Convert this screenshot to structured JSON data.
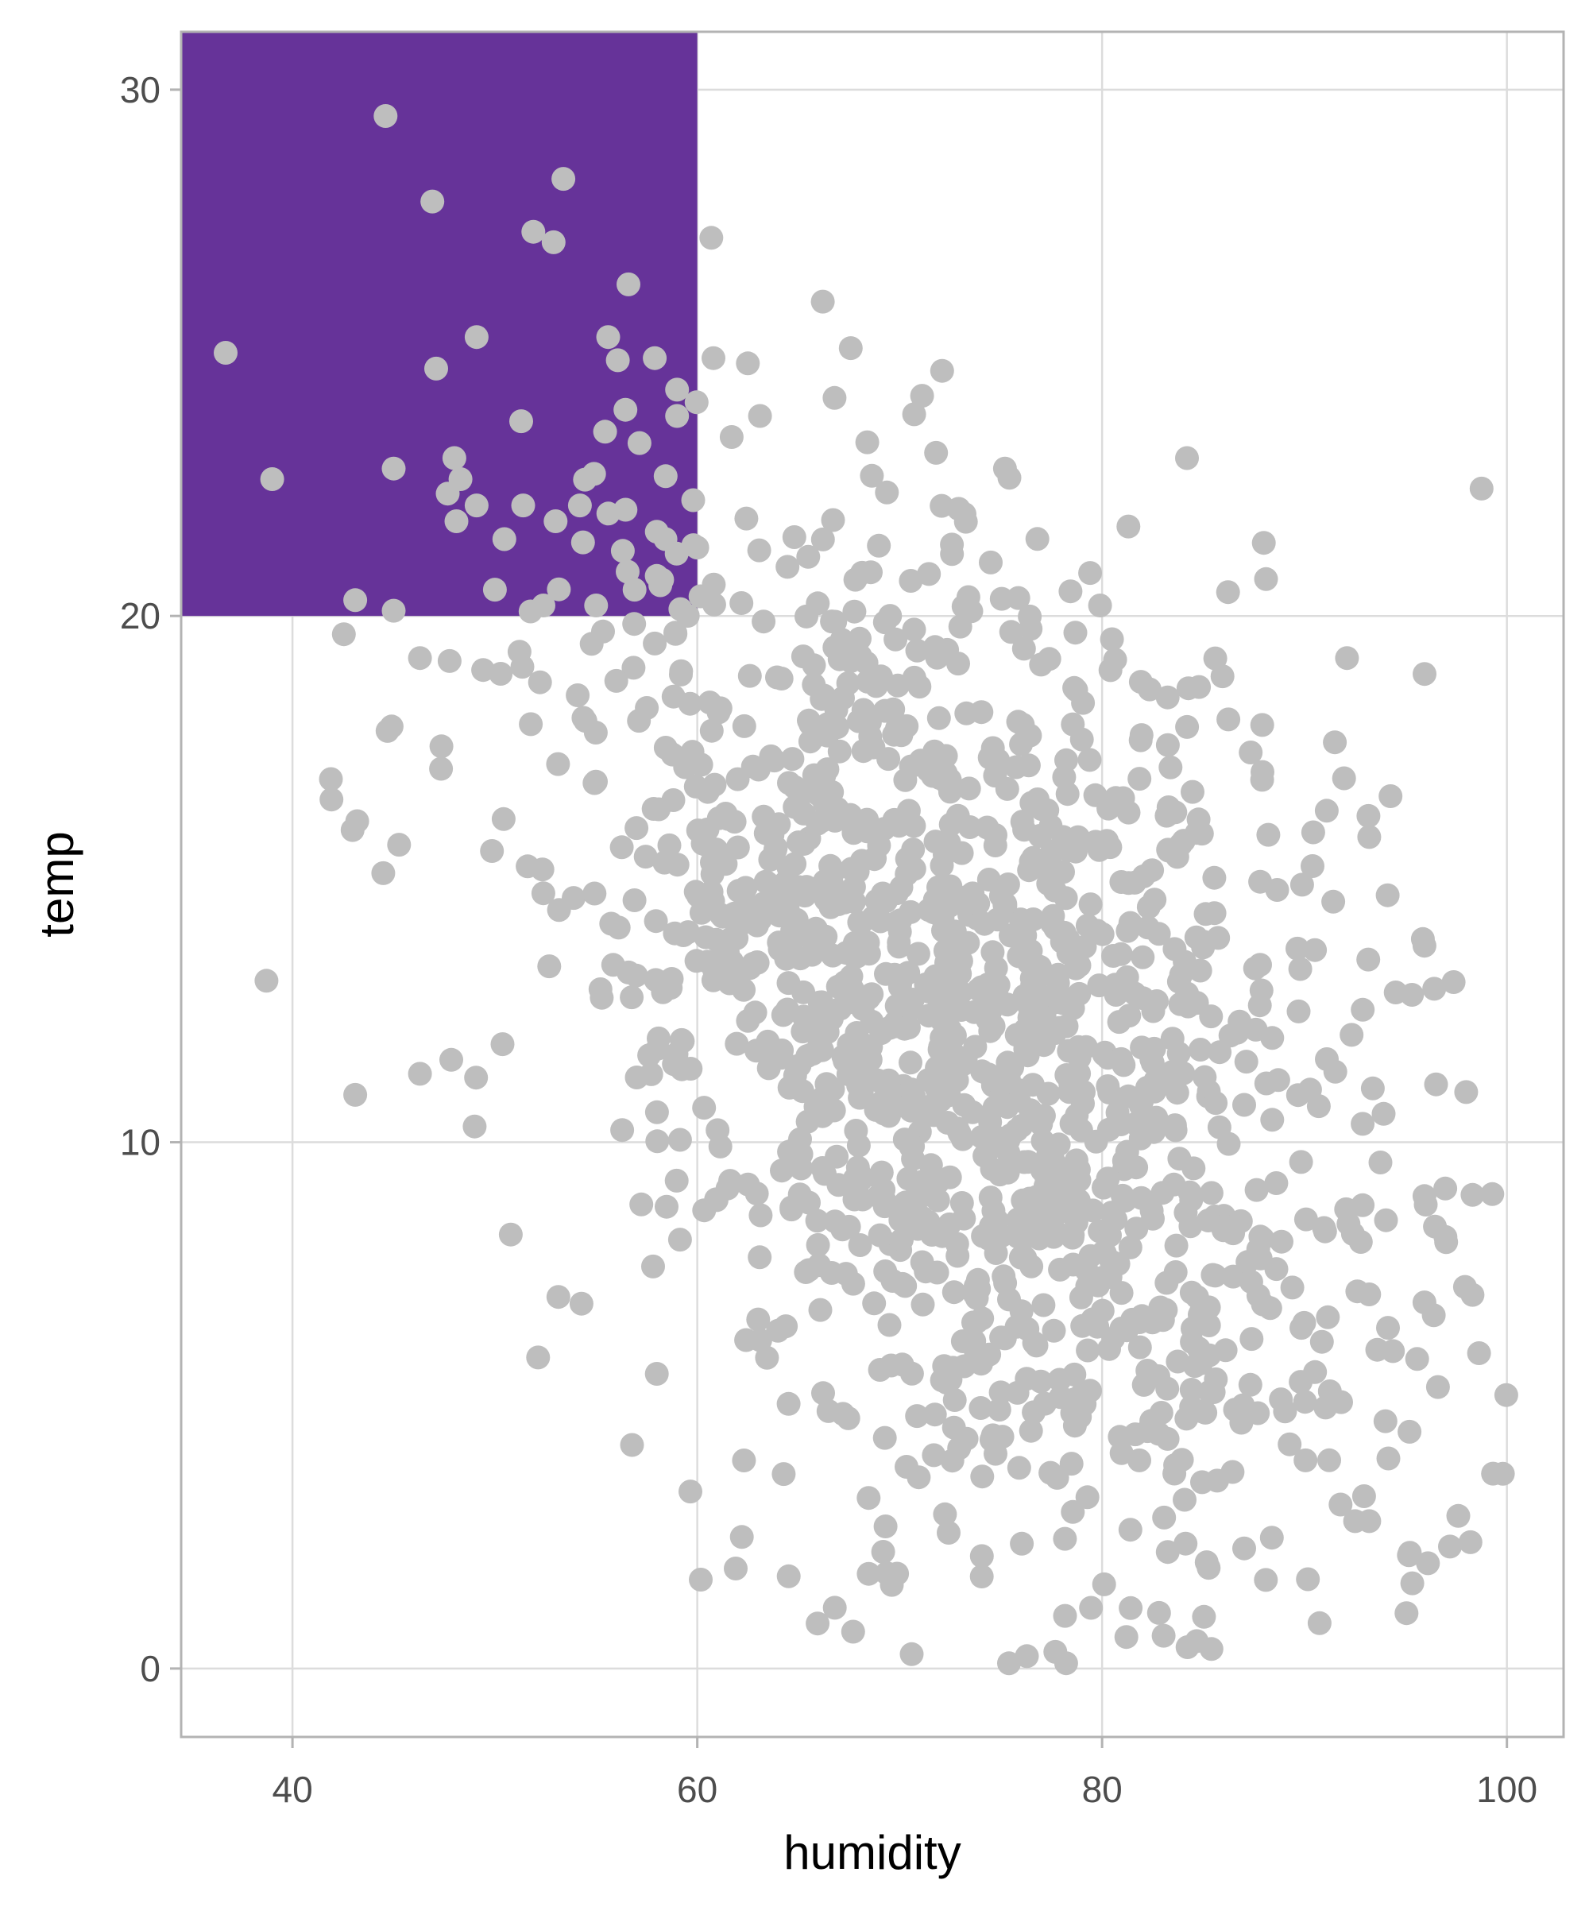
{
  "chart_data": {
    "type": "scatter",
    "title": "",
    "xlabel": "humidity",
    "ylabel": "temp",
    "xlim": [
      34.5,
      102.8
    ],
    "ylim": [
      -1.3,
      31.1
    ],
    "x_ticks": [
      40,
      60,
      80,
      100
    ],
    "y_ticks": [
      0,
      10,
      20,
      30
    ],
    "grid": true,
    "legend": "none",
    "colors": {
      "points": "#bebebe",
      "highlight_fill": "#663399",
      "grid": "#dcdcdc",
      "border": "#b3b3b3",
      "tick_text": "#4d4d4d"
    },
    "highlight_region": {
      "x": [
        34.5,
        60
      ],
      "y": [
        20,
        31.1
      ]
    },
    "point_count": 1500,
    "points_sample": [
      [
        44.6,
        29.5
      ],
      [
        51.9,
        27.3
      ],
      [
        52.9,
        27.1
      ],
      [
        56.6,
        26.3
      ],
      [
        36.7,
        25.0
      ],
      [
        49.1,
        25.3
      ],
      [
        47.1,
        24.7
      ],
      [
        55.6,
        25.3
      ],
      [
        57.9,
        24.9
      ],
      [
        59.0,
        24.3
      ],
      [
        51.3,
        23.7
      ],
      [
        59.0,
        23.8
      ],
      [
        39.0,
        22.6
      ],
      [
        45.0,
        22.8
      ],
      [
        48.0,
        23.0
      ],
      [
        48.3,
        22.6
      ],
      [
        54.9,
        22.7
      ],
      [
        48.1,
        21.8
      ],
      [
        49.1,
        22.1
      ],
      [
        51.4,
        22.1
      ],
      [
        53.0,
        21.8
      ],
      [
        54.2,
        22.1
      ],
      [
        58.0,
        21.6
      ],
      [
        59.8,
        22.2
      ],
      [
        60.0,
        21.3
      ],
      [
        43.1,
        20.3
      ],
      [
        45.0,
        20.1
      ],
      [
        50.0,
        20.5
      ],
      [
        52.4,
        20.2
      ],
      [
        55.0,
        20.2
      ],
      [
        56.9,
        20.5
      ],
      [
        60.8,
        24.9
      ],
      [
        62.5,
        24.8
      ],
      [
        63.1,
        23.8
      ],
      [
        61.7,
        23.4
      ],
      [
        68.4,
        23.3
      ],
      [
        71.8,
        23.1
      ],
      [
        75.2,
        22.8
      ],
      [
        81.3,
        21.7
      ],
      [
        88.1,
        20.7
      ],
      [
        79.9,
        20.2
      ],
      [
        92.1,
        19.2
      ],
      [
        41.9,
        16.9
      ],
      [
        43.2,
        16.1
      ],
      [
        46.3,
        19.2
      ],
      [
        44.9,
        17.9
      ],
      [
        43.1,
        10.9
      ],
      [
        46.3,
        11.3
      ],
      [
        49.0,
        10.3
      ],
      [
        58.0,
        5.6
      ],
      [
        62.2,
        2.5
      ],
      [
        61.9,
        1.9
      ],
      [
        67.7,
        0.7
      ],
      [
        75.4,
        0.1
      ],
      [
        81.2,
        0.6
      ],
      [
        80.1,
        1.6
      ],
      [
        99.8,
        3.7
      ],
      [
        98.3,
        7.1
      ],
      [
        98.3,
        9.0
      ],
      [
        96.5,
        11.1
      ],
      [
        97.6,
        2.9
      ],
      [
        98.2,
        2.4
      ],
      [
        95.2,
        2.2
      ],
      [
        96.1,
        2.0
      ],
      [
        94.0,
        4.7
      ],
      [
        92.5,
        2.8
      ],
      [
        93.2,
        2.8
      ],
      [
        91.5,
        17.6
      ],
      [
        93.2,
        15.8
      ],
      [
        91.1,
        16.3
      ]
    ]
  }
}
